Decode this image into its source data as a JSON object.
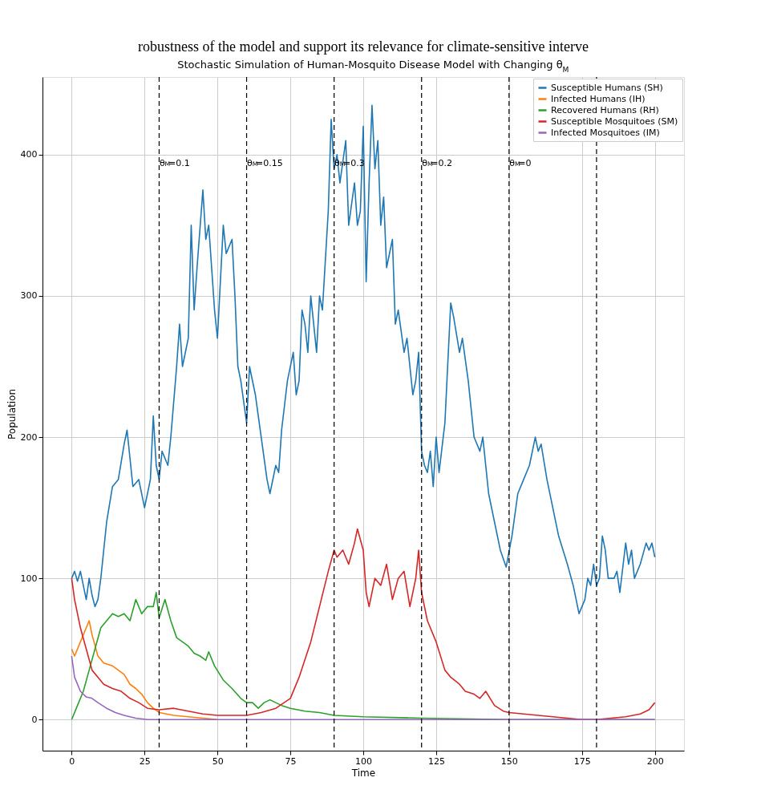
{
  "chart_data": {
    "type": "line",
    "title": "Stochastic Simulation of Human-Mosquito Disease Model with Changing θ$_{M}$",
    "annotations": [
      "robustness of the model and support  its relevance for climate-sensitive interve",
      {
        "text": "θ$_{M}$=0.1",
        "x": 30,
        "y": 400
      },
      {
        "text": "θ$_{M}$=0.15",
        "x": 60,
        "y": 400
      },
      {
        "text": "θ$_{M}$=0.3",
        "x": 90,
        "y": 400
      },
      {
        "text": "θ$_{M}$=0.2",
        "x": 120,
        "y": 400
      },
      {
        "text": "θ$_{M}$=0",
        "x": 150,
        "y": 400
      }
    ],
    "xlabel": "Time",
    "ylabel": "Population",
    "xlim": [
      -10,
      210
    ],
    "ylim": [
      -22,
      455
    ],
    "xticks": [
      0,
      25,
      50,
      75,
      100,
      125,
      150,
      175,
      200
    ],
    "yticks": [
      0,
      100,
      200,
      300,
      400
    ],
    "grid": true,
    "legend": "top right",
    "marker": "none",
    "line_style": "solid",
    "series": [
      {
        "name": "Susceptible Humans (SH)",
        "color": "#1f77b4",
        "x": [
          0,
          1,
          2,
          3,
          5,
          6,
          7,
          8,
          9,
          10,
          12,
          14,
          16,
          18,
          19,
          20,
          21,
          23,
          25,
          27,
          28,
          29,
          30,
          31,
          33,
          34,
          36,
          37,
          38,
          40,
          41,
          42,
          43,
          45,
          46,
          47,
          49,
          50,
          52,
          53,
          55,
          56,
          57,
          58,
          60,
          61,
          63,
          65,
          67,
          68,
          70,
          71,
          72,
          74,
          76,
          77,
          78,
          79,
          80,
          81,
          82,
          84,
          85,
          86,
          88,
          89,
          90,
          91,
          92,
          94,
          95,
          97,
          98,
          99,
          100,
          101,
          102,
          103,
          104,
          105,
          106,
          107,
          108,
          110,
          111,
          112,
          114,
          115,
          117,
          118,
          119,
          120,
          121,
          122,
          123,
          124,
          125,
          126,
          128,
          130,
          131,
          133,
          134,
          136,
          138,
          140,
          141,
          143,
          145,
          147,
          149,
          151,
          153,
          155,
          157,
          159,
          160,
          161,
          163,
          165,
          167,
          170,
          172,
          174,
          176,
          177,
          178,
          179,
          180,
          181,
          182,
          183,
          184,
          186,
          187,
          188,
          190,
          191,
          192,
          193,
          195,
          197,
          198,
          199,
          200
        ],
        "values": [
          100,
          105,
          98,
          105,
          85,
          100,
          88,
          80,
          85,
          100,
          140,
          165,
          170,
          195,
          205,
          185,
          165,
          170,
          150,
          170,
          215,
          180,
          170,
          190,
          180,
          200,
          250,
          280,
          250,
          270,
          350,
          290,
          320,
          375,
          340,
          350,
          290,
          270,
          350,
          330,
          340,
          300,
          250,
          240,
          210,
          250,
          230,
          200,
          170,
          160,
          180,
          175,
          205,
          240,
          260,
          230,
          240,
          290,
          280,
          260,
          300,
          260,
          300,
          290,
          360,
          425,
          390,
          400,
          380,
          410,
          350,
          380,
          350,
          360,
          420,
          310,
          380,
          435,
          390,
          410,
          350,
          370,
          320,
          340,
          280,
          290,
          260,
          270,
          230,
          240,
          260,
          190,
          180,
          175,
          190,
          165,
          200,
          175,
          210,
          295,
          285,
          260,
          270,
          240,
          200,
          190,
          200,
          160,
          140,
          120,
          108,
          130,
          160,
          170,
          180,
          200,
          190,
          195,
          170,
          150,
          130,
          110,
          95,
          75,
          85,
          100,
          95,
          110,
          95,
          100,
          130,
          120,
          100,
          100,
          105,
          90,
          125,
          110,
          120,
          100,
          110,
          125,
          120,
          125,
          115
        ]
      },
      {
        "name": "Infected Humans (IH)",
        "color": "#ff7f0e",
        "x": [
          0,
          1,
          3,
          5,
          6,
          7,
          9,
          11,
          14,
          16,
          18,
          20,
          22,
          24,
          26,
          28,
          30,
          35,
          40,
          45,
          50
        ],
        "values": [
          50,
          45,
          55,
          65,
          70,
          60,
          45,
          40,
          38,
          35,
          32,
          25,
          22,
          18,
          12,
          8,
          5,
          3,
          2,
          1,
          0
        ]
      },
      {
        "name": "Recovered Humans (RH)",
        "color": "#2ca02c",
        "x": [
          0,
          2,
          4,
          6,
          8,
          10,
          12,
          14,
          16,
          18,
          20,
          22,
          24,
          26,
          28,
          29,
          30,
          32,
          34,
          36,
          38,
          40,
          42,
          44,
          46,
          47,
          49,
          52,
          55,
          58,
          60,
          62,
          64,
          66,
          68,
          70,
          72,
          75,
          80,
          85,
          90,
          100,
          120,
          150,
          200
        ],
        "values": [
          0,
          10,
          20,
          35,
          50,
          65,
          70,
          75,
          73,
          75,
          70,
          85,
          75,
          80,
          80,
          90,
          72,
          85,
          70,
          58,
          55,
          52,
          47,
          45,
          42,
          48,
          38,
          28,
          22,
          15,
          12,
          12,
          8,
          12,
          14,
          12,
          10,
          8,
          6,
          5,
          3,
          2,
          1,
          0,
          0
        ]
      },
      {
        "name": "Susceptible Mosquitoes (SM)",
        "color": "#d62728",
        "x": [
          0,
          1,
          3,
          5,
          7,
          9,
          11,
          14,
          17,
          20,
          23,
          26,
          30,
          35,
          40,
          45,
          50,
          55,
          60,
          65,
          70,
          75,
          78,
          82,
          85,
          88,
          90,
          91,
          93,
          95,
          97,
          98,
          100,
          101,
          102,
          104,
          106,
          108,
          110,
          112,
          114,
          116,
          118,
          119,
          120,
          122,
          125,
          128,
          130,
          133,
          135,
          138,
          140,
          142,
          145,
          148,
          150,
          155,
          160,
          165,
          170,
          175,
          180,
          185,
          190,
          195,
          198,
          200
        ],
        "values": [
          100,
          85,
          65,
          50,
          35,
          30,
          25,
          22,
          20,
          15,
          12,
          8,
          7,
          8,
          6,
          4,
          3,
          3,
          3,
          5,
          8,
          15,
          30,
          55,
          80,
          105,
          120,
          115,
          120,
          110,
          125,
          135,
          120,
          90,
          80,
          100,
          95,
          110,
          85,
          100,
          105,
          80,
          100,
          120,
          90,
          70,
          55,
          35,
          30,
          25,
          20,
          18,
          15,
          20,
          10,
          6,
          5,
          4,
          3,
          2,
          1,
          0,
          0,
          1,
          2,
          4,
          7,
          12
        ]
      },
      {
        "name": "Infected Mosquitoes (IM)",
        "color": "#9467bd",
        "x": [
          0,
          1,
          3,
          5,
          7,
          9,
          12,
          15,
          18,
          22,
          26,
          200
        ],
        "values": [
          45,
          30,
          20,
          16,
          15,
          12,
          8,
          5,
          3,
          1,
          0,
          0
        ]
      }
    ],
    "ref_lines": [
      {
        "axis": "x",
        "value": 30,
        "color": "#000000",
        "line_style": "dashed"
      },
      {
        "axis": "x",
        "value": 60,
        "color": "#000000",
        "line_style": "dashed"
      },
      {
        "axis": "x",
        "value": 90,
        "color": "#000000",
        "line_style": "dashed"
      },
      {
        "axis": "x",
        "value": 120,
        "color": "#000000",
        "line_style": "dashed"
      },
      {
        "axis": "x",
        "value": 150,
        "color": "#000000",
        "line_style": "dashed"
      },
      {
        "axis": "x",
        "value": 180,
        "color": "#000000",
        "line_style": "dashed"
      }
    ]
  }
}
